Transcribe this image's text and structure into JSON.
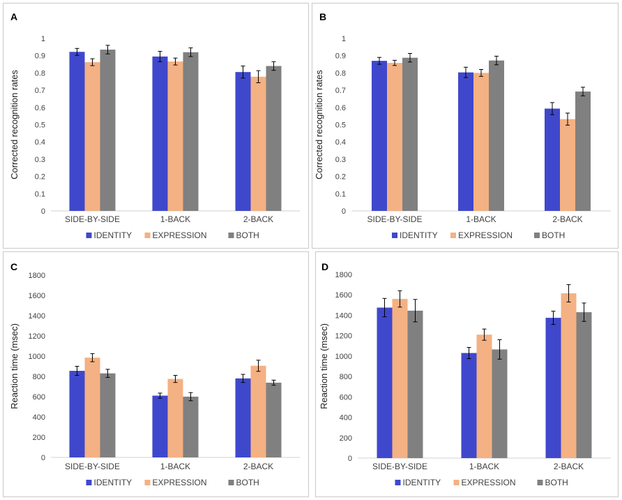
{
  "colors": {
    "identity": "#3f48cc",
    "expression": "#f4b183",
    "both": "#808080"
  },
  "chart_data": [
    {
      "panel": "A",
      "type": "bar",
      "ylabel": "Corrected recognition rates",
      "ylim": [
        0,
        1
      ],
      "yticks": [
        "0",
        "0.1",
        "0.2",
        "0.3",
        "0.4",
        "0.5",
        "0.6",
        "0.7",
        "0.8",
        "0.9",
        "1"
      ],
      "categories": [
        "SIDE-BY-SIDE",
        "1-BACK",
        "2-BACK"
      ],
      "series": [
        {
          "name": "IDENTITY",
          "values": [
            0.922,
            0.895,
            0.805
          ],
          "errors": [
            0.02,
            0.03,
            0.035
          ]
        },
        {
          "name": "EXPRESSION",
          "values": [
            0.862,
            0.866,
            0.778
          ],
          "errors": [
            0.02,
            0.02,
            0.035
          ]
        },
        {
          "name": "BOTH",
          "values": [
            0.935,
            0.92,
            0.84
          ],
          "errors": [
            0.025,
            0.025,
            0.025
          ]
        }
      ]
    },
    {
      "panel": "B",
      "type": "bar",
      "ylabel": "Corrected recognition rates",
      "ylim": [
        0,
        1
      ],
      "yticks": [
        "0",
        "0.1",
        "0.2",
        "0.3",
        "0.4",
        "0.5",
        "0.6",
        "0.7",
        "0.8",
        "0.9",
        "1"
      ],
      "categories": [
        "SIDE-BY-SIDE",
        "1-BACK",
        "2-BACK"
      ],
      "series": [
        {
          "name": "IDENTITY",
          "values": [
            0.87,
            0.803,
            0.593
          ],
          "errors": [
            0.02,
            0.03,
            0.035
          ]
        },
        {
          "name": "EXPRESSION",
          "values": [
            0.858,
            0.8,
            0.532
          ],
          "errors": [
            0.015,
            0.02,
            0.035
          ]
        },
        {
          "name": "BOTH",
          "values": [
            0.888,
            0.872,
            0.692
          ],
          "errors": [
            0.025,
            0.025,
            0.025
          ]
        }
      ]
    },
    {
      "panel": "C",
      "type": "bar",
      "ylabel": "Reaction time (msec)",
      "ylim": [
        0,
        1800
      ],
      "yticks": [
        "0",
        "200",
        "400",
        "600",
        "800",
        "1000",
        "1200",
        "1400",
        "1600",
        "1800"
      ],
      "categories": [
        "SIDE-BY-SIDE",
        "1-BACK",
        "2-BACK"
      ],
      "series": [
        {
          "name": "IDENTITY",
          "values": [
            855,
            610,
            780
          ],
          "errors": [
            45,
            25,
            40
          ]
        },
        {
          "name": "EXPRESSION",
          "values": [
            985,
            775,
            905
          ],
          "errors": [
            40,
            35,
            55
          ]
        },
        {
          "name": "BOTH",
          "values": [
            830,
            600,
            738
          ],
          "errors": [
            40,
            40,
            25
          ]
        }
      ]
    },
    {
      "panel": "D",
      "type": "bar",
      "ylabel": "Reaction time (msec)",
      "ylim": [
        0,
        1800
      ],
      "yticks": [
        "0",
        "200",
        "400",
        "600",
        "800",
        "1000",
        "1200",
        "1400",
        "1600",
        "1800"
      ],
      "categories": [
        "SIDE-BY-SIDE",
        "1-BACK",
        "2-BACK"
      ],
      "series": [
        {
          "name": "IDENTITY",
          "values": [
            1475,
            1030,
            1375
          ],
          "errors": [
            90,
            55,
            65
          ]
        },
        {
          "name": "EXPRESSION",
          "values": [
            1560,
            1210,
            1615
          ],
          "errors": [
            80,
            55,
            85
          ]
        },
        {
          "name": "BOTH",
          "values": [
            1445,
            1065,
            1430
          ],
          "errors": [
            110,
            95,
            90
          ]
        }
      ]
    }
  ]
}
